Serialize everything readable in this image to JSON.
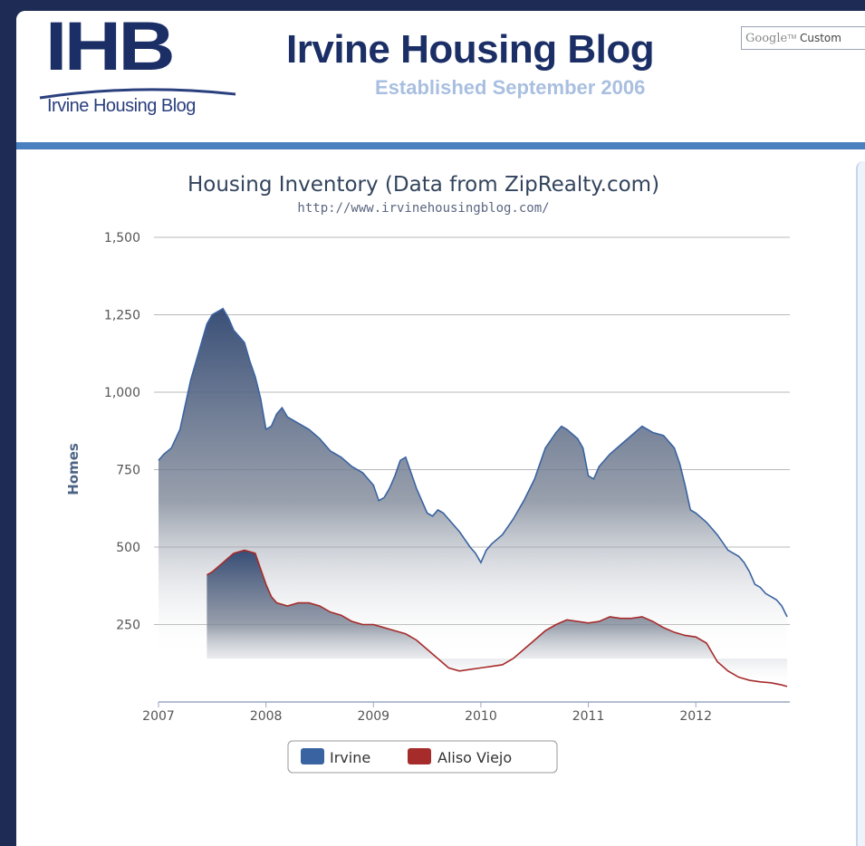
{
  "header": {
    "logo_text": "IHB",
    "logo_subtext": "Irvine Housing Blog",
    "site_title": "Irvine Housing Blog",
    "tagline": "Established September 2006",
    "search_brand": "Google",
    "search_tm": "TM",
    "search_label": "Custom"
  },
  "colors": {
    "header_title": "#1b2f66",
    "tagline": "#a9bfe0",
    "accent_bar": "#4a7fc0",
    "irvine": "#3a63a1",
    "aliso_viejo": "#a62c2c"
  },
  "chart_data": {
    "type": "area",
    "title": "Housing Inventory (Data from ZipRealty.com)",
    "subtitle": "http://www.irvinehousingblog.com/",
    "ylabel": "Homes",
    "xlabel": "",
    "ylim": [
      0,
      1500
    ],
    "xlim": [
      2007.0,
      2012.875
    ],
    "yticks": [
      "250",
      "500",
      "750",
      "1,000",
      "1,250",
      "1,500"
    ],
    "ytick_values": [
      250,
      500,
      750,
      1000,
      1250,
      1500
    ],
    "xticks": [
      "2007",
      "2008",
      "2009",
      "2010",
      "2011",
      "2012"
    ],
    "xtick_values": [
      2007,
      2008,
      2009,
      2010,
      2011,
      2012
    ],
    "grid": true,
    "legend": "bottom-center",
    "series": [
      {
        "name": "Irvine",
        "color": "#3a63a1",
        "points": [
          [
            2007.0,
            780
          ],
          [
            2007.05,
            800
          ],
          [
            2007.12,
            820
          ],
          [
            2007.2,
            880
          ],
          [
            2007.25,
            960
          ],
          [
            2007.3,
            1040
          ],
          [
            2007.35,
            1100
          ],
          [
            2007.4,
            1160
          ],
          [
            2007.45,
            1220
          ],
          [
            2007.5,
            1250
          ],
          [
            2007.55,
            1260
          ],
          [
            2007.6,
            1270
          ],
          [
            2007.65,
            1240
          ],
          [
            2007.7,
            1200
          ],
          [
            2007.75,
            1180
          ],
          [
            2007.8,
            1160
          ],
          [
            2007.85,
            1100
          ],
          [
            2007.9,
            1050
          ],
          [
            2007.95,
            980
          ],
          [
            2008.0,
            880
          ],
          [
            2008.05,
            890
          ],
          [
            2008.1,
            930
          ],
          [
            2008.15,
            950
          ],
          [
            2008.2,
            920
          ],
          [
            2008.3,
            900
          ],
          [
            2008.4,
            880
          ],
          [
            2008.5,
            850
          ],
          [
            2008.6,
            810
          ],
          [
            2008.7,
            790
          ],
          [
            2008.8,
            760
          ],
          [
            2008.9,
            740
          ],
          [
            2009.0,
            700
          ],
          [
            2009.05,
            650
          ],
          [
            2009.1,
            660
          ],
          [
            2009.15,
            690
          ],
          [
            2009.2,
            730
          ],
          [
            2009.25,
            780
          ],
          [
            2009.3,
            790
          ],
          [
            2009.35,
            740
          ],
          [
            2009.4,
            690
          ],
          [
            2009.45,
            650
          ],
          [
            2009.5,
            610
          ],
          [
            2009.55,
            600
          ],
          [
            2009.6,
            620
          ],
          [
            2009.65,
            610
          ],
          [
            2009.7,
            590
          ],
          [
            2009.8,
            550
          ],
          [
            2009.9,
            500
          ],
          [
            2009.95,
            480
          ],
          [
            2010.0,
            450
          ],
          [
            2010.05,
            490
          ],
          [
            2010.1,
            510
          ],
          [
            2010.2,
            540
          ],
          [
            2010.3,
            590
          ],
          [
            2010.4,
            650
          ],
          [
            2010.5,
            720
          ],
          [
            2010.6,
            820
          ],
          [
            2010.7,
            870
          ],
          [
            2010.75,
            890
          ],
          [
            2010.8,
            880
          ],
          [
            2010.9,
            850
          ],
          [
            2010.95,
            820
          ],
          [
            2011.0,
            730
          ],
          [
            2011.05,
            720
          ],
          [
            2011.1,
            760
          ],
          [
            2011.2,
            800
          ],
          [
            2011.3,
            830
          ],
          [
            2011.4,
            860
          ],
          [
            2011.5,
            890
          ],
          [
            2011.6,
            870
          ],
          [
            2011.7,
            860
          ],
          [
            2011.8,
            820
          ],
          [
            2011.85,
            770
          ],
          [
            2011.9,
            700
          ],
          [
            2011.95,
            620
          ],
          [
            2012.0,
            610
          ],
          [
            2012.1,
            580
          ],
          [
            2012.2,
            540
          ],
          [
            2012.3,
            490
          ],
          [
            2012.4,
            470
          ],
          [
            2012.45,
            450
          ],
          [
            2012.5,
            420
          ],
          [
            2012.55,
            380
          ],
          [
            2012.6,
            370
          ],
          [
            2012.65,
            350
          ],
          [
            2012.7,
            340
          ],
          [
            2012.75,
            330
          ],
          [
            2012.8,
            310
          ],
          [
            2012.85,
            275
          ]
        ]
      },
      {
        "name": "Aliso Viejo",
        "color": "#a62c2c",
        "points": [
          [
            2007.45,
            410
          ],
          [
            2007.5,
            420
          ],
          [
            2007.6,
            450
          ],
          [
            2007.7,
            480
          ],
          [
            2007.8,
            490
          ],
          [
            2007.9,
            480
          ],
          [
            2008.0,
            380
          ],
          [
            2008.05,
            340
          ],
          [
            2008.1,
            320
          ],
          [
            2008.2,
            310
          ],
          [
            2008.3,
            320
          ],
          [
            2008.4,
            320
          ],
          [
            2008.5,
            310
          ],
          [
            2008.6,
            290
          ],
          [
            2008.7,
            280
          ],
          [
            2008.8,
            260
          ],
          [
            2008.9,
            250
          ],
          [
            2009.0,
            250
          ],
          [
            2009.1,
            240
          ],
          [
            2009.2,
            230
          ],
          [
            2009.3,
            220
          ],
          [
            2009.4,
            200
          ],
          [
            2009.5,
            170
          ],
          [
            2009.6,
            140
          ],
          [
            2009.7,
            110
          ],
          [
            2009.8,
            100
          ],
          [
            2009.9,
            105
          ],
          [
            2010.0,
            110
          ],
          [
            2010.1,
            115
          ],
          [
            2010.2,
            120
          ],
          [
            2010.3,
            140
          ],
          [
            2010.4,
            170
          ],
          [
            2010.5,
            200
          ],
          [
            2010.6,
            230
          ],
          [
            2010.7,
            250
          ],
          [
            2010.8,
            265
          ],
          [
            2010.9,
            260
          ],
          [
            2011.0,
            255
          ],
          [
            2011.1,
            260
          ],
          [
            2011.2,
            275
          ],
          [
            2011.3,
            270
          ],
          [
            2011.4,
            270
          ],
          [
            2011.5,
            275
          ],
          [
            2011.6,
            260
          ],
          [
            2011.7,
            240
          ],
          [
            2011.8,
            225
          ],
          [
            2011.9,
            215
          ],
          [
            2012.0,
            210
          ],
          [
            2012.1,
            190
          ],
          [
            2012.2,
            130
          ],
          [
            2012.3,
            100
          ],
          [
            2012.4,
            80
          ],
          [
            2012.5,
            70
          ],
          [
            2012.6,
            65
          ],
          [
            2012.7,
            62
          ],
          [
            2012.8,
            55
          ],
          [
            2012.85,
            50
          ]
        ]
      }
    ]
  }
}
